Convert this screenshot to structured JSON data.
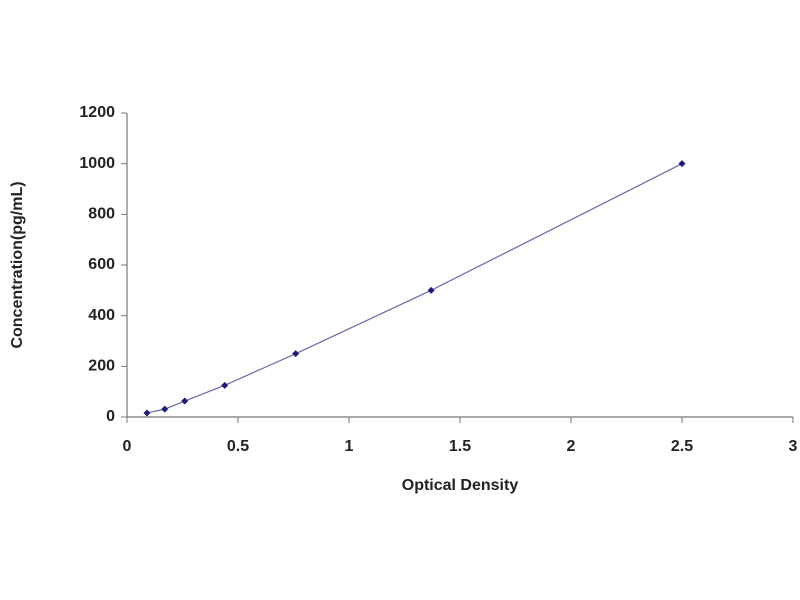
{
  "chart_data": {
    "type": "scatter",
    "x_label": "Optical Density",
    "y_label": "Concentration(pg/mL)",
    "series": [
      {
        "x": [
          0.09,
          0.17,
          0.26,
          0.44,
          0.76,
          1.37,
          2.5
        ],
        "values": [
          16,
          31,
          63,
          125,
          250,
          500,
          1000
        ],
        "color": "#1c1c78",
        "line_color": "#6a6aa8"
      }
    ],
    "xlim": [
      0,
      3
    ],
    "xticks": [
      0,
      0.5,
      1,
      1.5,
      2,
      2.5,
      3
    ],
    "ylim": [
      0,
      1200
    ],
    "yticks": [
      0,
      200,
      400,
      600,
      800,
      1000,
      1200
    ],
    "grid": false
  }
}
